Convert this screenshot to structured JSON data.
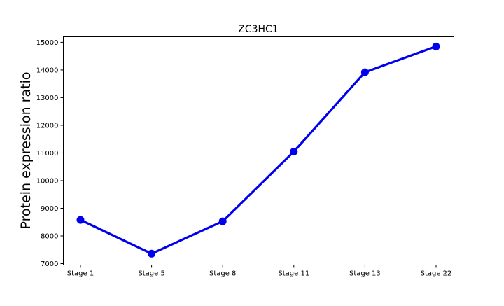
{
  "chart_data": {
    "type": "line",
    "title": "ZC3HC1",
    "xlabel": "",
    "ylabel": "Protein expression ratio",
    "categories": [
      "Stage 1",
      "Stage 5",
      "Stage 8",
      "Stage 11",
      "Stage 13",
      "Stage 22"
    ],
    "series": [
      {
        "values": [
          8580,
          7360,
          8530,
          11050,
          13920,
          14850
        ],
        "color": "#0000ee",
        "marker": "circle"
      }
    ],
    "ylim": [
      6950,
      15200
    ],
    "yticks": [
      7000,
      8000,
      9000,
      10000,
      11000,
      12000,
      13000,
      14000,
      15000
    ],
    "grid": false,
    "legend": "none"
  }
}
